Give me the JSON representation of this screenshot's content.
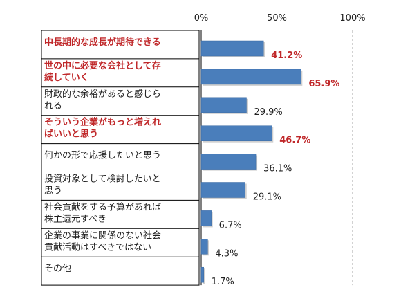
{
  "chart_data": {
    "type": "bar",
    "orientation": "horizontal",
    "categories": [
      [
        "中長期的な成長が期待できる"
      ],
      [
        "世の中に必要な会社として存",
        "続していく"
      ],
      [
        "財政的な余裕があると感じら",
        "れる"
      ],
      [
        "そういう企業がもっと増えれ",
        "ばいいと思う"
      ],
      [
        "何かの形で応援したいと思う"
      ],
      [
        "投資対象として検討したいと",
        "思う"
      ],
      [
        "社会貢献をする予算があれば",
        "株主還元すべき"
      ],
      [
        "企業の事業に関係のない社会",
        "貢献活動はすべきではない"
      ],
      [
        "その他"
      ]
    ],
    "values": [
      41.2,
      65.9,
      29.9,
      46.7,
      36.1,
      29.1,
      6.7,
      4.3,
      1.7
    ],
    "value_labels": [
      "41.2%",
      "65.9%",
      "29.9%",
      "46.7%",
      "36.1%",
      "29.1%",
      "6.7%",
      "4.3%",
      "1.7%"
    ],
    "highlighted": [
      true,
      true,
      false,
      true,
      false,
      false,
      false,
      false,
      false
    ],
    "xlim": [
      0,
      100
    ],
    "xticks": [
      0,
      50,
      100
    ],
    "xtick_labels": [
      "0%",
      "50%",
      "100%"
    ],
    "grid": true,
    "colors": {
      "bar": "#4a7ebb",
      "highlight_text": "#c0282a",
      "grid": "#a6a6a6",
      "text": "#222222"
    }
  }
}
